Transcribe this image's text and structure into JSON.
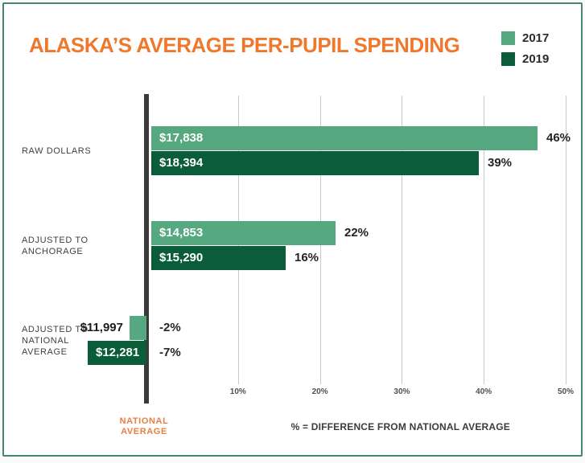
{
  "title": "ALASKA’S AVERAGE PER-PUPIL SPENDING",
  "footnote": "% = DIFFERENCE FROM NATIONAL AVERAGE",
  "colors": {
    "title_orange": "#f0782d",
    "axis_caption_orange": "#e58045",
    "series_2017_green": "#55a87f",
    "series_2019_green": "#0b5c38",
    "axis_dark": "#3a3a3a",
    "card_border_green": "#45876d"
  },
  "legend": {
    "items": [
      {
        "label": "2017",
        "color": "#55a87f"
      },
      {
        "label": "2019",
        "color": "#0b5c38"
      }
    ]
  },
  "chart_data": {
    "type": "bar",
    "orientation": "horizontal",
    "title": "ALASKA’S AVERAGE PER-PUPIL SPENDING",
    "categories": [
      "RAW DOLLARS",
      "ADJUSTED TO ANCHORAGE",
      "ADJUSTED TO NATIONAL AVERAGE"
    ],
    "category_label_lines": [
      [
        "RAW DOLLARS"
      ],
      [
        "ADJUSTED TO",
        "ANCHORAGE"
      ],
      [
        "ADJUSTED TO",
        "NATIONAL",
        "AVERAGE"
      ]
    ],
    "series": [
      {
        "name": "2017",
        "color": "#55a87f",
        "dollar_values": [
          17838,
          14853,
          11997
        ],
        "dollar_labels": [
          "$17,838",
          "$14,853",
          "$11,997"
        ],
        "pct_values": [
          46,
          22,
          -2
        ],
        "pct_labels": [
          "46%",
          "22%",
          "-2%"
        ]
      },
      {
        "name": "2019",
        "color": "#0b5c38",
        "dollar_values": [
          18394,
          15290,
          12281
        ],
        "dollar_labels": [
          "$18,394",
          "$15,290",
          "$12,281"
        ],
        "pct_values": [
          39,
          16,
          -7
        ],
        "pct_labels": [
          "39%",
          "16%",
          "-7%"
        ]
      }
    ],
    "x_axis": {
      "ticks": [
        "10%",
        "20%",
        "30%",
        "40%",
        "50%"
      ],
      "tick_values": [
        10,
        20,
        30,
        40,
        50
      ],
      "range": [
        0,
        50
      ],
      "baseline_label_lines": [
        "NATIONAL",
        "AVERAGE"
      ],
      "grid": true
    },
    "legend_position": "top-right",
    "footnote": "% = DIFFERENCE FROM NATIONAL AVERAGE"
  }
}
